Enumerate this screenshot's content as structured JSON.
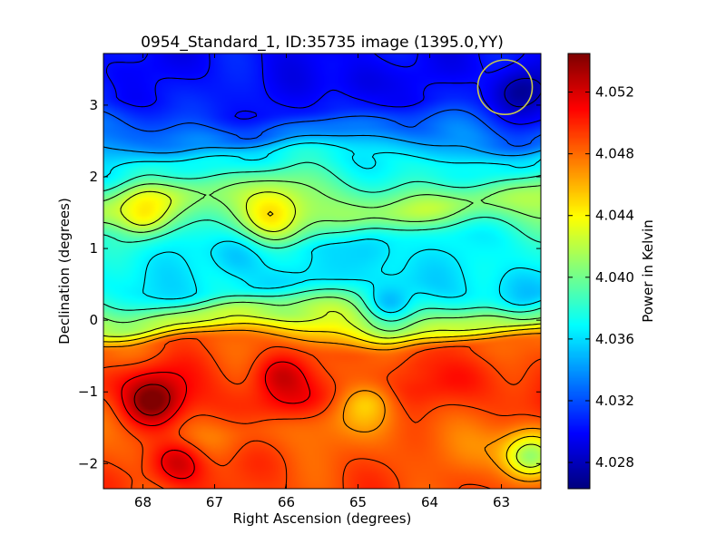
{
  "chart_data": {
    "type": "heatmap",
    "title": "0954_Standard_1, ID:35735 image (1395.0,YY)",
    "xlabel": "Right Ascension (degrees)",
    "ylabel": "Declination (degrees)",
    "colorbar_label": "Power in Kelvin",
    "xlim": [
      68.55,
      62.45
    ],
    "ylim": [
      -2.35,
      3.72
    ],
    "x_ticks": [
      68,
      67,
      66,
      65,
      64,
      63
    ],
    "y_ticks": [
      -2,
      -1,
      0,
      1,
      2,
      3
    ],
    "x_tick_labels": [
      "68",
      "67",
      "66",
      "65",
      "64",
      "63"
    ],
    "y_tick_labels": [
      "−2",
      "−1",
      "0",
      "1",
      "2",
      "3"
    ],
    "colorbar_range": [
      4.0263,
      4.0545
    ],
    "colorbar_ticks": [
      4.028,
      4.032,
      4.036,
      4.04,
      4.044,
      4.048,
      4.052
    ],
    "colorbar_tick_labels": [
      "4.028",
      "4.032",
      "4.036",
      "4.040",
      "4.044",
      "4.048",
      "4.052"
    ],
    "colormap": "jet",
    "contours": true,
    "grid": false,
    "beam_circle": {
      "ra": 62.95,
      "dec": 3.25,
      "radius_deg": 0.38,
      "color": "#c8c850"
    },
    "field": {
      "description_of_values": "Power in Kelvin by (RA, Dec); contour lines drawn over color map",
      "bands": [
        {
          "dec": 3.5,
          "value": 4.03
        },
        {
          "dec": 3.0,
          "value": 4.0305
        },
        {
          "dec": 2.6,
          "value": 4.033
        },
        {
          "dec": 2.2,
          "value": 4.037
        },
        {
          "dec": 1.6,
          "value": 4.0415
        },
        {
          "dec": 1.0,
          "value": 4.037
        },
        {
          "dec": 0.5,
          "value": 4.0365
        },
        {
          "dec": 0.0,
          "value": 4.042
        },
        {
          "dec": -0.4,
          "value": 4.0485
        },
        {
          "dec": -1.0,
          "value": 4.05
        },
        {
          "dec": -1.6,
          "value": 4.048
        },
        {
          "dec": -2.2,
          "value": 4.049
        }
      ],
      "features": [
        {
          "ra": 67.85,
          "dec": -1.1,
          "value": 4.0545,
          "note": "maximum"
        },
        {
          "ra": 67.5,
          "dec": -2.0,
          "value": 4.0525
        },
        {
          "ra": 66.1,
          "dec": -0.8,
          "value": 4.052
        },
        {
          "ra": 64.2,
          "dec": -0.65,
          "value": 4.05
        },
        {
          "ra": 68.0,
          "dec": 1.5,
          "value": 4.044
        },
        {
          "ra": 66.2,
          "dec": 1.5,
          "value": 4.044
        },
        {
          "ra": 64.85,
          "dec": -1.2,
          "value": 4.046
        },
        {
          "ra": 64.55,
          "dec": 0.3,
          "value": 4.035
        },
        {
          "ra": 66.7,
          "dec": 0.85,
          "value": 4.035
        },
        {
          "ra": 64.8,
          "dec": 0.95,
          "value": 4.035
        },
        {
          "ra": 62.8,
          "dec": 0.4,
          "value": 4.035
        },
        {
          "ra": 65.0,
          "dec": 3.3,
          "value": 4.0285
        },
        {
          "ra": 62.75,
          "dec": 3.2,
          "value": 4.0265,
          "note": "minimum"
        },
        {
          "ra": 62.6,
          "dec": -1.9,
          "value": 4.04
        }
      ]
    }
  }
}
